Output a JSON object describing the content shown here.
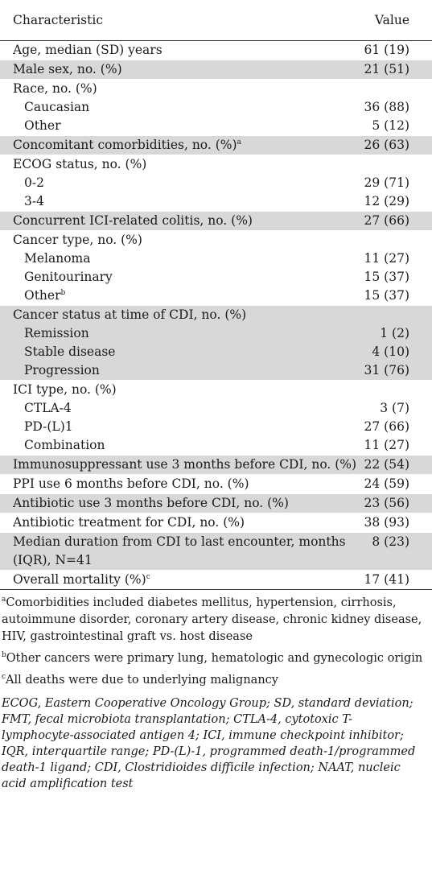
{
  "header": {
    "characteristic": "Characteristic",
    "value": "Value"
  },
  "rows": [
    {
      "label": "Age, median (SD) years",
      "value": "61 (19)",
      "shade": false
    },
    {
      "label": "Male sex, no. (%)",
      "value": "21 (51)",
      "shade": true
    },
    {
      "label": "Race, no. (%)",
      "shade": false,
      "subs": [
        {
          "label": "Caucasian",
          "value": "36 (88)"
        },
        {
          "label": "Other",
          "value": "5 (12)"
        }
      ]
    },
    {
      "label": "Concomitant comorbidities, no. (%)",
      "sup": "a",
      "value": "26 (63)",
      "shade": true
    },
    {
      "label": "ECOG status, no. (%)",
      "shade": false,
      "subs": [
        {
          "label": "0-2",
          "value": "29 (71)"
        },
        {
          "label": "3-4",
          "value": "12 (29)"
        }
      ]
    },
    {
      "label": "Concurrent ICI-related colitis, no. (%)",
      "value": "27 (66)",
      "shade": true
    },
    {
      "label": "Cancer type, no. (%)",
      "shade": false,
      "subs": [
        {
          "label": "Melanoma",
          "value": "11 (27)"
        },
        {
          "label": "Genitourinary",
          "value": "15 (37)"
        },
        {
          "label": "Other",
          "sup": "b",
          "value": "15 (37)"
        }
      ]
    },
    {
      "label": "Cancer status at time of CDI, no. (%)",
      "shade": true,
      "subs": [
        {
          "label": "Remission",
          "value": "1 (2)"
        },
        {
          "label": "Stable disease",
          "value": "4 (10)"
        },
        {
          "label": "Progression",
          "value": "31 (76)"
        }
      ]
    },
    {
      "label": "ICI type, no. (%)",
      "shade": false,
      "subs": [
        {
          "label": "CTLA-4",
          "value": "3 (7)"
        },
        {
          "label": "PD-(L)1",
          "value": "27 (66)"
        },
        {
          "label": "Combination",
          "value": "11 (27)"
        }
      ]
    },
    {
      "label": "Immunosuppressant use 3 months before CDI, no. (%)",
      "value": "22 (54)",
      "shade": true
    },
    {
      "label": "PPI use 6 months before CDI, no. (%)",
      "value": "24 (59)",
      "shade": false
    },
    {
      "label": "Antibiotic use 3 months before CDI, no. (%)",
      "value": "23 (56)",
      "shade": true
    },
    {
      "label": "Antibiotic treatment for CDI, no. (%)",
      "value": "38 (93)",
      "shade": false
    },
    {
      "label": "Median duration from CDI to last encounter, months",
      "label2": "(IQR), N=41",
      "value": "8 (23)",
      "shade": true
    },
    {
      "label": "Overall mortality (%)",
      "sup": "c",
      "value": "17 (41)",
      "shade": false
    }
  ],
  "footnotes": [
    {
      "mark": "a",
      "text": "Comorbidities included diabetes mellitus, hypertension, cirrhosis, autoimmune disorder, coronary artery disease, chronic kidney disease, HIV, gastrointestinal graft vs. host disease"
    },
    {
      "mark": "b",
      "text": "Other cancers were primary lung, hematologic and gynecologic origin"
    },
    {
      "mark": "c",
      "text": "All deaths were due to underlying malignancy"
    }
  ],
  "abbreviations": "ECOG, Eastern Cooperative Oncology Group; SD, standard deviation; FMT, fecal microbiota transplantation; CTLA-4, cytotoxic T-lymphocyte-associated antigen 4; ICI, immune checkpoint inhibitor; IQR, interquartile range; PD-(L)-1, programmed death-1/programmed death-1 ligand; CDI, Clostridioides difficile infection; NAAT, nucleic acid amplification test",
  "colors": {
    "shade": "#d8d8d8",
    "rule": "#333333"
  }
}
